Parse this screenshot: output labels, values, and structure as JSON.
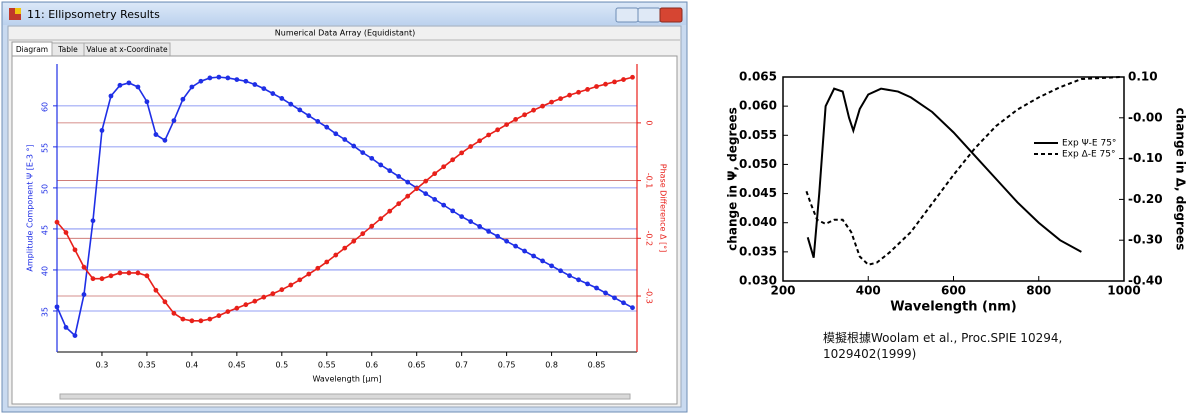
{
  "window": {
    "title": "11: Ellipsometry Results",
    "header": "Numerical Data Array (Equidistant)",
    "tabs": [
      "Diagram",
      "Table",
      "Value at x-Coordinate"
    ]
  },
  "chart_data": [
    {
      "type": "line",
      "xlabel": "Wavelength [µm]",
      "ylabel": "Amplitude Component Ψ [E-3 °]",
      "y2label": "Phase Difference Δ [°]",
      "xlim": [
        0.25,
        0.895
      ],
      "ylim": [
        30,
        65.1
      ],
      "y2lim": [
        -0.397,
        0.102
      ],
      "xticks": [
        0.3,
        0.35,
        0.4,
        0.45,
        0.5,
        0.55,
        0.6,
        0.65,
        0.7,
        0.75,
        0.8,
        0.85
      ],
      "yticks": [
        35,
        40,
        45,
        50,
        55,
        60
      ],
      "y2ticks": [
        -0.3,
        -0.2,
        -0.1,
        0
      ],
      "grid": true,
      "markers": true,
      "x": [
        0.25,
        0.26,
        0.27,
        0.28,
        0.29,
        0.3,
        0.31,
        0.32,
        0.33,
        0.34,
        0.35,
        0.36,
        0.37,
        0.38,
        0.39,
        0.4,
        0.41,
        0.42,
        0.43,
        0.44,
        0.45,
        0.46,
        0.47,
        0.48,
        0.49,
        0.5,
        0.51,
        0.52,
        0.53,
        0.54,
        0.55,
        0.56,
        0.57,
        0.58,
        0.59,
        0.6,
        0.61,
        0.62,
        0.63,
        0.64,
        0.65,
        0.66,
        0.67,
        0.68,
        0.69,
        0.7,
        0.71,
        0.72,
        0.73,
        0.74,
        0.75,
        0.76,
        0.77,
        0.78,
        0.79,
        0.8,
        0.81,
        0.82,
        0.83,
        0.84,
        0.85,
        0.86,
        0.87,
        0.88,
        0.89
      ],
      "series": [
        {
          "color": "#1f2fe6",
          "axis": "y",
          "values": [
            35.5,
            33,
            32,
            37,
            46,
            57,
            61.2,
            62.5,
            62.8,
            62.3,
            60.5,
            56.5,
            55.8,
            58.2,
            60.8,
            62.3,
            63.0,
            63.4,
            63.5,
            63.4,
            63.2,
            63.0,
            62.6,
            62.1,
            61.5,
            60.9,
            60.2,
            59.5,
            58.8,
            58.1,
            57.4,
            56.6,
            55.9,
            55.1,
            54.3,
            53.6,
            52.8,
            52.1,
            51.4,
            50.7,
            50.0,
            49.3,
            48.6,
            47.9,
            47.2,
            46.5,
            45.9,
            45.3,
            44.7,
            44.1,
            43.5,
            42.9,
            42.3,
            41.7,
            41.1,
            40.5,
            39.9,
            39.3,
            38.8,
            38.3,
            37.8,
            37.2,
            36.6,
            36.0,
            35.4
          ]
        },
        {
          "color": "#e8201a",
          "axis": "y2",
          "values": [
            -0.172,
            -0.19,
            -0.22,
            -0.25,
            -0.27,
            -0.27,
            -0.265,
            -0.26,
            -0.26,
            -0.26,
            -0.265,
            -0.29,
            -0.31,
            -0.33,
            -0.34,
            -0.343,
            -0.343,
            -0.34,
            -0.334,
            -0.327,
            -0.321,
            -0.315,
            -0.309,
            -0.302,
            -0.296,
            -0.289,
            -0.281,
            -0.272,
            -0.262,
            -0.252,
            -0.241,
            -0.229,
            -0.217,
            -0.205,
            -0.192,
            -0.179,
            -0.166,
            -0.153,
            -0.14,
            -0.127,
            -0.114,
            -0.101,
            -0.088,
            -0.076,
            -0.064,
            -0.052,
            -0.041,
            -0.031,
            -0.021,
            -0.012,
            -0.003,
            0.006,
            0.014,
            0.022,
            0.029,
            0.036,
            0.042,
            0.048,
            0.053,
            0.058,
            0.063,
            0.067,
            0.071,
            0.075,
            0.079
          ]
        }
      ]
    },
    {
      "type": "line",
      "xlabel": "Wavelength (nm)",
      "ylabel": "change in Ψ, degrees",
      "y2label": "change in Δ, degrees",
      "xlim": [
        200,
        1000
      ],
      "ylim": [
        0.03,
        0.065
      ],
      "y2lim": [
        -0.4,
        0.1
      ],
      "xticks": [
        200,
        400,
        600,
        800,
        1000
      ],
      "yticks": [
        {
          "value": 0.065,
          "label": "0.065"
        },
        {
          "value": 0.06,
          "label": "0.060"
        },
        {
          "value": 0.055,
          "label": "0.055"
        },
        {
          "value": 0.05,
          "label": "0.050"
        },
        {
          "value": 0.045,
          "label": "0.045"
        },
        {
          "value": 0.04,
          "label": "0.040"
        },
        {
          "value": 0.035,
          "label": "0.035"
        },
        {
          "value": 0.03,
          "label": "0.030"
        }
      ],
      "y2ticks": [
        {
          "value": 0.1,
          "label": "0.10"
        },
        {
          "value": 0,
          "label": "-0.00"
        },
        {
          "value": -0.1,
          "label": "-0.10"
        },
        {
          "value": -0.2,
          "label": "-0.20"
        },
        {
          "value": -0.3,
          "label": "-0.30"
        },
        {
          "value": -0.4,
          "label": "-0.40"
        }
      ],
      "grid": false,
      "markers": false,
      "legend": "right",
      "series": [
        {
          "name": "Exp Ψ-E 75°",
          "color": "#000000",
          "linestyle": "solid",
          "axis": "y",
          "x": [
            258,
            272,
            285,
            300,
            320,
            340,
            355,
            365,
            380,
            400,
            430,
            470,
            500,
            550,
            600,
            650,
            700,
            750,
            800,
            850,
            900
          ],
          "values": [
            0.0375,
            0.034,
            0.045,
            0.06,
            0.063,
            0.0625,
            0.058,
            0.0558,
            0.0595,
            0.062,
            0.063,
            0.0625,
            0.0615,
            0.059,
            0.0555,
            0.0515,
            0.0475,
            0.0435,
            0.04,
            0.037,
            0.035
          ]
        },
        {
          "name": "Exp Δ-E 75°",
          "color": "#000000",
          "linestyle": "dashed",
          "axis": "y2",
          "x": [
            255,
            265,
            280,
            300,
            320,
            340,
            360,
            380,
            400,
            420,
            450,
            500,
            550,
            600,
            650,
            700,
            750,
            800,
            850,
            900,
            990
          ],
          "values": [
            -0.18,
            -0.21,
            -0.25,
            -0.26,
            -0.25,
            -0.25,
            -0.28,
            -0.34,
            -0.36,
            -0.355,
            -0.33,
            -0.28,
            -0.21,
            -0.14,
            -0.075,
            -0.02,
            0.02,
            0.05,
            0.075,
            0.095,
            0.1
          ]
        }
      ]
    }
  ],
  "caption": "模擬根據Woolam et al., Proc.SPIE 10294, 1029402(1999)"
}
